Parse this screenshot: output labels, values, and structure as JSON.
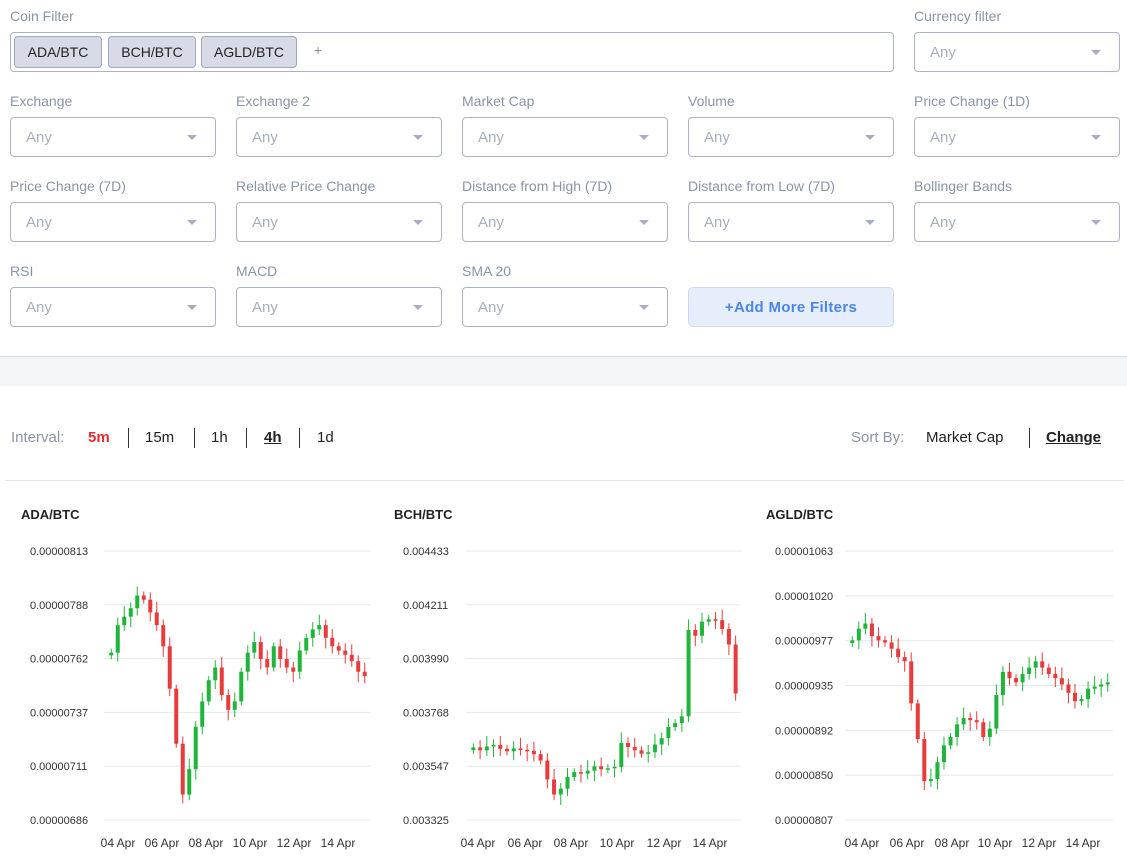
{
  "filters": {
    "coin_filter_label": "Coin Filter",
    "coins": [
      "ADA/BTC",
      "BCH/BTC",
      "AGLD/BTC"
    ],
    "add_symbol": "+",
    "currency_filter_label": "Currency filter",
    "currency_value": "Any",
    "selects": [
      {
        "label": "Exchange",
        "value": "Any"
      },
      {
        "label": "Exchange 2",
        "value": "Any"
      },
      {
        "label": "Market Cap",
        "value": "Any"
      },
      {
        "label": "Volume",
        "value": "Any"
      },
      {
        "label": "Price Change (1D)",
        "value": "Any"
      },
      {
        "label": "Price Change (7D)",
        "value": "Any"
      },
      {
        "label": "Relative Price Change",
        "value": "Any"
      },
      {
        "label": "Distance from High (7D)",
        "value": "Any"
      },
      {
        "label": "Distance from Low (7D)",
        "value": "Any"
      },
      {
        "label": "Bollinger Bands",
        "value": "Any"
      },
      {
        "label": "RSI",
        "value": "Any"
      },
      {
        "label": "MACD",
        "value": "Any"
      },
      {
        "label": "SMA 20",
        "value": "Any"
      }
    ],
    "add_more_label": "+Add More Filters"
  },
  "interval": {
    "label": "Interval:",
    "options": [
      "5m",
      "15m",
      "1h",
      "4h",
      "1d"
    ],
    "highlighted": "5m",
    "selected": "4h"
  },
  "sort": {
    "label": "Sort By:",
    "options": [
      "Market Cap",
      "Change"
    ],
    "selected": "Change"
  },
  "colors": {
    "up": "#1fb53a",
    "down": "#e83b3b",
    "accent": "#4c86e8"
  },
  "chart_data": [
    {
      "type": "candlestick",
      "title": "ADA/BTC",
      "yticks": [
        "0.00000813",
        "0.00000788",
        "0.00000762",
        "0.00000737",
        "0.00000711",
        "0.00000686"
      ],
      "ylim": [
        6.86e-06,
        8.13e-06
      ],
      "xticks": [
        "04 Apr",
        "06 Apr",
        "08 Apr",
        "10 Apr",
        "12 Apr",
        "14 Apr"
      ],
      "close": [
        7.65e-06,
        7.78e-06,
        7.82e-06,
        7.86e-06,
        7.92e-06,
        7.9e-06,
        7.84e-06,
        7.78e-06,
        7.68e-06,
        7.48e-06,
        7.22e-06,
        6.98e-06,
        7.1e-06,
        7.3e-06,
        7.42e-06,
        7.52e-06,
        7.58e-06,
        7.45e-06,
        7.38e-06,
        7.42e-06,
        7.56e-06,
        7.65e-06,
        7.7e-06,
        7.62e-06,
        7.58e-06,
        7.68e-06,
        7.62e-06,
        7.58e-06,
        7.56e-06,
        7.66e-06,
        7.72e-06,
        7.76e-06,
        7.78e-06,
        7.72e-06,
        7.68e-06,
        7.66e-06,
        7.64e-06,
        7.61e-06,
        7.56e-06,
        7.54e-06
      ]
    },
    {
      "type": "candlestick",
      "title": "BCH/BTC",
      "yticks": [
        "0.004433",
        "0.004211",
        "0.003990",
        "0.003768",
        "0.003547",
        "0.003325"
      ],
      "ylim": [
        0.003325,
        0.004433
      ],
      "xticks": [
        "04 Apr",
        "06 Apr",
        "08 Apr",
        "10 Apr",
        "12 Apr",
        "14 Apr"
      ],
      "close": [
        0.003624,
        0.003612,
        0.003628,
        0.003634,
        0.003618,
        0.003608,
        0.00362,
        0.003614,
        0.00361,
        0.003596,
        0.00357,
        0.003492,
        0.00343,
        0.003454,
        0.003502,
        0.003522,
        0.003516,
        0.003528,
        0.003546,
        0.003534,
        0.003538,
        0.003544,
        0.003642,
        0.003626,
        0.003612,
        0.003598,
        0.003604,
        0.003636,
        0.003662,
        0.003708,
        0.003724,
        0.003752,
        0.004108,
        0.004084,
        0.004142,
        0.004152,
        0.004148,
        0.004112,
        0.004048,
        0.003846
      ]
    },
    {
      "type": "candlestick",
      "title": "AGLD/BTC",
      "yticks": [
        "0.00001063",
        "0.00001020",
        "0.00000977",
        "0.00000935",
        "0.00000892",
        "0.00000850",
        "0.00000807"
      ],
      "ylim": [
        8.07e-06,
        1.063e-05
      ],
      "xticks": [
        "04 Apr",
        "06 Apr",
        "08 Apr",
        "10 Apr",
        "12 Apr",
        "14 Apr"
      ],
      "close": [
        9.78e-06,
        9.89e-06,
        9.94e-06,
        9.82e-06,
        9.78e-06,
        9.76e-06,
        9.7e-06,
        9.62e-06,
        9.58e-06,
        9.18e-06,
        8.84e-06,
        8.44e-06,
        8.46e-06,
        8.62e-06,
        8.78e-06,
        8.86e-06,
        8.98e-06,
        9.04e-06,
        9.02e-06,
        9e-06,
        8.86e-06,
        8.94e-06,
        9.26e-06,
        9.48e-06,
        9.42e-06,
        9.38e-06,
        9.46e-06,
        9.52e-06,
        9.58e-06,
        9.52e-06,
        9.46e-06,
        9.42e-06,
        9.36e-06,
        9.28e-06,
        9.2e-06,
        9.22e-06,
        9.32e-06,
        9.34e-06,
        9.36e-06,
        9.38e-06
      ]
    }
  ]
}
